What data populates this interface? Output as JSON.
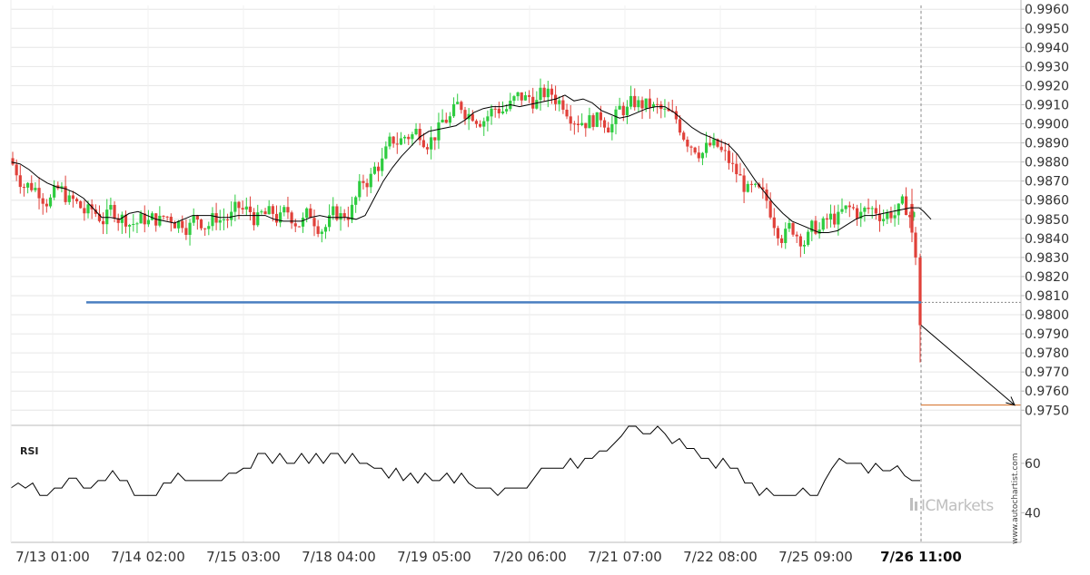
{
  "chart_data": [
    {
      "type": "candlestick",
      "panel": "price",
      "y_ticks": [
        "0.9960",
        "0.9950",
        "0.9940",
        "0.9930",
        "0.9920",
        "0.9910",
        "0.9900",
        "0.9890",
        "0.9880",
        "0.9870",
        "0.9860",
        "0.9850",
        "0.9840",
        "0.9830",
        "0.9820",
        "0.9810",
        "0.9800",
        "0.9790",
        "0.9780",
        "0.9770",
        "0.9760",
        "0.9750"
      ],
      "ylim": [
        0.9743,
        0.9962
      ],
      "x_ticks": [
        "7/13 01:00",
        "7/14 02:00",
        "7/15 03:00",
        "7/18 04:00",
        "7/19 05:00",
        "7/20 06:00",
        "7/21 07:00",
        "7/22 08:00",
        "7/25 09:00",
        "7/26 11:00"
      ],
      "highlight_tick": "7/26 11:00",
      "moving_average": [
        [
          0,
          0.988
        ],
        [
          10,
          0.9879
        ],
        [
          20,
          0.9876
        ],
        [
          30,
          0.9872
        ],
        [
          40,
          0.9869
        ],
        [
          50,
          0.9867
        ],
        [
          60,
          0.9866
        ],
        [
          70,
          0.9864
        ],
        [
          80,
          0.9861
        ],
        [
          90,
          0.9856
        ],
        [
          100,
          0.9851
        ],
        [
          110,
          0.9851
        ],
        [
          120,
          0.985
        ],
        [
          130,
          0.9853
        ],
        [
          140,
          0.9854
        ],
        [
          150,
          0.9852
        ],
        [
          160,
          0.985
        ],
        [
          170,
          0.9849
        ],
        [
          180,
          0.9848
        ],
        [
          190,
          0.985
        ],
        [
          200,
          0.9852
        ],
        [
          210,
          0.9852
        ],
        [
          220,
          0.9852
        ],
        [
          230,
          0.9851
        ],
        [
          240,
          0.9851
        ],
        [
          250,
          0.9852
        ],
        [
          260,
          0.9852
        ],
        [
          270,
          0.9852
        ],
        [
          280,
          0.9852
        ],
        [
          290,
          0.985
        ],
        [
          300,
          0.9849
        ],
        [
          310,
          0.9849
        ],
        [
          320,
          0.9849
        ],
        [
          330,
          0.9851
        ],
        [
          340,
          0.9852
        ],
        [
          350,
          0.9851
        ],
        [
          360,
          0.9851
        ],
        [
          370,
          0.9851
        ],
        [
          380,
          0.985
        ],
        [
          390,
          0.9852
        ],
        [
          400,
          0.9861
        ],
        [
          410,
          0.987
        ],
        [
          420,
          0.9877
        ],
        [
          430,
          0.9883
        ],
        [
          440,
          0.9888
        ],
        [
          450,
          0.9893
        ],
        [
          460,
          0.9896
        ],
        [
          470,
          0.9897
        ],
        [
          480,
          0.9898
        ],
        [
          490,
          0.9899
        ],
        [
          500,
          0.9902
        ],
        [
          510,
          0.9906
        ],
        [
          520,
          0.9908
        ],
        [
          530,
          0.9909
        ],
        [
          540,
          0.9909
        ],
        [
          550,
          0.991
        ],
        [
          560,
          0.9909
        ],
        [
          570,
          0.991
        ],
        [
          580,
          0.9911
        ],
        [
          590,
          0.9912
        ],
        [
          600,
          0.9913
        ],
        [
          610,
          0.9915
        ],
        [
          620,
          0.9912
        ],
        [
          630,
          0.9913
        ],
        [
          640,
          0.9911
        ],
        [
          650,
          0.9907
        ],
        [
          660,
          0.9905
        ],
        [
          670,
          0.9903
        ],
        [
          680,
          0.9904
        ],
        [
          690,
          0.9906
        ],
        [
          700,
          0.9908
        ],
        [
          710,
          0.9909
        ],
        [
          720,
          0.9909
        ],
        [
          730,
          0.9906
        ],
        [
          740,
          0.9902
        ],
        [
          750,
          0.9898
        ],
        [
          760,
          0.9895
        ],
        [
          770,
          0.9893
        ],
        [
          780,
          0.9891
        ],
        [
          790,
          0.9889
        ],
        [
          800,
          0.9884
        ],
        [
          810,
          0.9877
        ],
        [
          820,
          0.987
        ],
        [
          830,
          0.9864
        ],
        [
          840,
          0.9858
        ],
        [
          850,
          0.9853
        ],
        [
          860,
          0.9849
        ],
        [
          870,
          0.9847
        ],
        [
          880,
          0.9845
        ],
        [
          890,
          0.9843
        ],
        [
          900,
          0.9843
        ],
        [
          910,
          0.9844
        ],
        [
          920,
          0.9847
        ],
        [
          930,
          0.985
        ],
        [
          940,
          0.9852
        ],
        [
          950,
          0.9852
        ],
        [
          960,
          0.9853
        ],
        [
          970,
          0.9854
        ],
        [
          980,
          0.9855
        ],
        [
          990,
          0.9856
        ],
        [
          1000,
          0.9856
        ],
        [
          1005,
          0.9854
        ],
        [
          1013,
          0.985
        ]
      ],
      "support_level": {
        "value": 0.98065,
        "color": "#4a7fc1"
      },
      "target_level": {
        "value": 0.97527,
        "color": "#d2691e"
      },
      "projection": {
        "from": [
          1014,
          0.97945
        ],
        "to": [
          1117,
          0.97527
        ]
      },
      "colors": {
        "up": "#2ecc40",
        "down": "#e0413a",
        "ma": "#000000",
        "grid": "#e6e6e6",
        "axis": "#bbbbbb"
      }
    },
    {
      "type": "line",
      "panel": "rsi",
      "label": "RSI",
      "y_ticks": [
        "60",
        "40"
      ],
      "ylim": [
        28,
        75
      ],
      "values": [
        [
          12,
          50
        ],
        [
          20,
          52
        ],
        [
          28,
          50
        ],
        [
          36,
          52
        ],
        [
          44,
          47
        ],
        [
          52,
          47
        ],
        [
          60,
          50
        ],
        [
          68,
          50
        ],
        [
          76,
          54
        ],
        [
          84,
          54
        ],
        [
          92,
          50
        ],
        [
          100,
          50
        ],
        [
          108,
          53
        ],
        [
          116,
          53
        ],
        [
          124,
          57
        ],
        [
          132,
          53
        ],
        [
          140,
          53
        ],
        [
          148,
          47
        ],
        [
          156,
          47
        ],
        [
          164,
          47
        ],
        [
          172,
          47
        ],
        [
          180,
          52
        ],
        [
          188,
          52
        ],
        [
          196,
          56
        ],
        [
          204,
          53
        ],
        [
          212,
          53
        ],
        [
          220,
          53
        ],
        [
          228,
          53
        ],
        [
          236,
          53
        ],
        [
          244,
          53
        ],
        [
          252,
          56
        ],
        [
          260,
          56
        ],
        [
          268,
          58
        ],
        [
          276,
          58
        ],
        [
          284,
          64
        ],
        [
          292,
          64
        ],
        [
          300,
          60
        ],
        [
          308,
          64
        ],
        [
          316,
          60
        ],
        [
          324,
          60
        ],
        [
          332,
          64
        ],
        [
          340,
          60
        ],
        [
          348,
          64
        ],
        [
          356,
          60
        ],
        [
          364,
          64
        ],
        [
          372,
          64
        ],
        [
          380,
          60
        ],
        [
          388,
          64
        ],
        [
          396,
          60
        ],
        [
          404,
          60
        ],
        [
          412,
          58
        ],
        [
          420,
          58
        ],
        [
          428,
          54
        ],
        [
          436,
          58
        ],
        [
          444,
          53
        ],
        [
          452,
          56
        ],
        [
          460,
          52
        ],
        [
          468,
          56
        ],
        [
          476,
          53
        ],
        [
          484,
          53
        ],
        [
          492,
          56
        ],
        [
          500,
          52
        ],
        [
          508,
          56
        ],
        [
          516,
          52
        ],
        [
          524,
          50
        ],
        [
          532,
          50
        ],
        [
          540,
          50
        ],
        [
          548,
          47
        ],
        [
          556,
          50
        ],
        [
          564,
          50
        ],
        [
          572,
          50
        ],
        [
          580,
          50
        ],
        [
          588,
          54
        ],
        [
          596,
          58
        ],
        [
          604,
          58
        ],
        [
          612,
          58
        ],
        [
          620,
          58
        ],
        [
          628,
          62
        ],
        [
          636,
          58
        ],
        [
          644,
          62
        ],
        [
          652,
          62
        ],
        [
          660,
          65
        ],
        [
          668,
          65
        ],
        [
          676,
          68
        ],
        [
          684,
          71
        ],
        [
          692,
          75
        ],
        [
          700,
          75
        ],
        [
          708,
          72
        ],
        [
          716,
          72
        ],
        [
          724,
          75
        ],
        [
          732,
          72
        ],
        [
          740,
          68
        ],
        [
          748,
          70
        ],
        [
          756,
          66
        ],
        [
          764,
          66
        ],
        [
          772,
          62
        ],
        [
          780,
          62
        ],
        [
          788,
          58
        ],
        [
          796,
          62
        ],
        [
          804,
          58
        ],
        [
          812,
          58
        ],
        [
          820,
          52
        ],
        [
          828,
          52
        ],
        [
          836,
          47
        ],
        [
          844,
          50
        ],
        [
          852,
          47
        ],
        [
          860,
          47
        ],
        [
          868,
          47
        ],
        [
          876,
          47
        ],
        [
          884,
          50
        ],
        [
          892,
          47
        ],
        [
          900,
          47
        ],
        [
          908,
          53
        ],
        [
          916,
          58
        ],
        [
          924,
          62
        ],
        [
          932,
          60
        ],
        [
          940,
          60
        ],
        [
          948,
          60
        ],
        [
          956,
          56
        ],
        [
          964,
          60
        ],
        [
          972,
          57
        ],
        [
          980,
          57
        ],
        [
          988,
          59
        ],
        [
          996,
          55
        ],
        [
          1004,
          53
        ],
        [
          1013,
          53
        ]
      ],
      "color": "#000000"
    }
  ],
  "watermark": {
    "side_text": "www.autochartist.com",
    "brand": "ICMarkets"
  }
}
